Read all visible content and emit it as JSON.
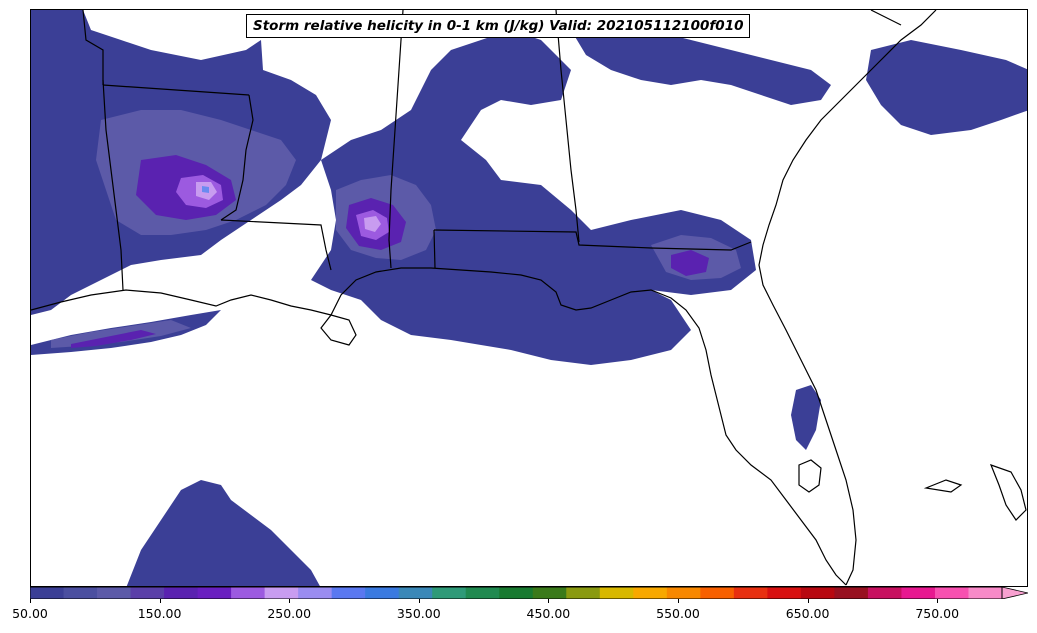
{
  "title": "Storm relative helicity in 0-1 km (J/kg) Valid: 202105112100f010",
  "colorbar": {
    "min": 50,
    "max": 800,
    "extend": "max",
    "tick_values": [
      50,
      150,
      250,
      350,
      450,
      550,
      650,
      750
    ],
    "tick_labels": [
      "50.00",
      "150.00",
      "250.00",
      "350.00",
      "450.00",
      "550.00",
      "650.00",
      "750.00"
    ],
    "colors": [
      "#3b3f96",
      "#4b4fa0",
      "#5c5aa8",
      "#5a3fa8",
      "#5a22b0",
      "#6a1fc0",
      "#9c5ae0",
      "#c89cf0",
      "#9a8cf0",
      "#5a78f0",
      "#3a7ae0",
      "#3a88b8",
      "#2e9a78",
      "#208a50",
      "#187a30",
      "#3a7a1a",
      "#8a9a10",
      "#d8b800",
      "#f8a800",
      "#f88800",
      "#f86000",
      "#e83010",
      "#d81010",
      "#b80810",
      "#981020",
      "#c81060",
      "#e81890",
      "#f850b0",
      "#f88ac8"
    ],
    "extend_color": "#f8a0d0"
  },
  "map": {
    "region": "Southeastern United States and Gulf of Mexico",
    "field_colors": {
      "level1": "#3b3f96",
      "level2": "#5c5aa8",
      "level3": "#5a22b0",
      "level4": "#9c5ae0",
      "level5": "#c89cf0",
      "level6": "#6a8af0"
    },
    "outline_color": "#000000"
  }
}
